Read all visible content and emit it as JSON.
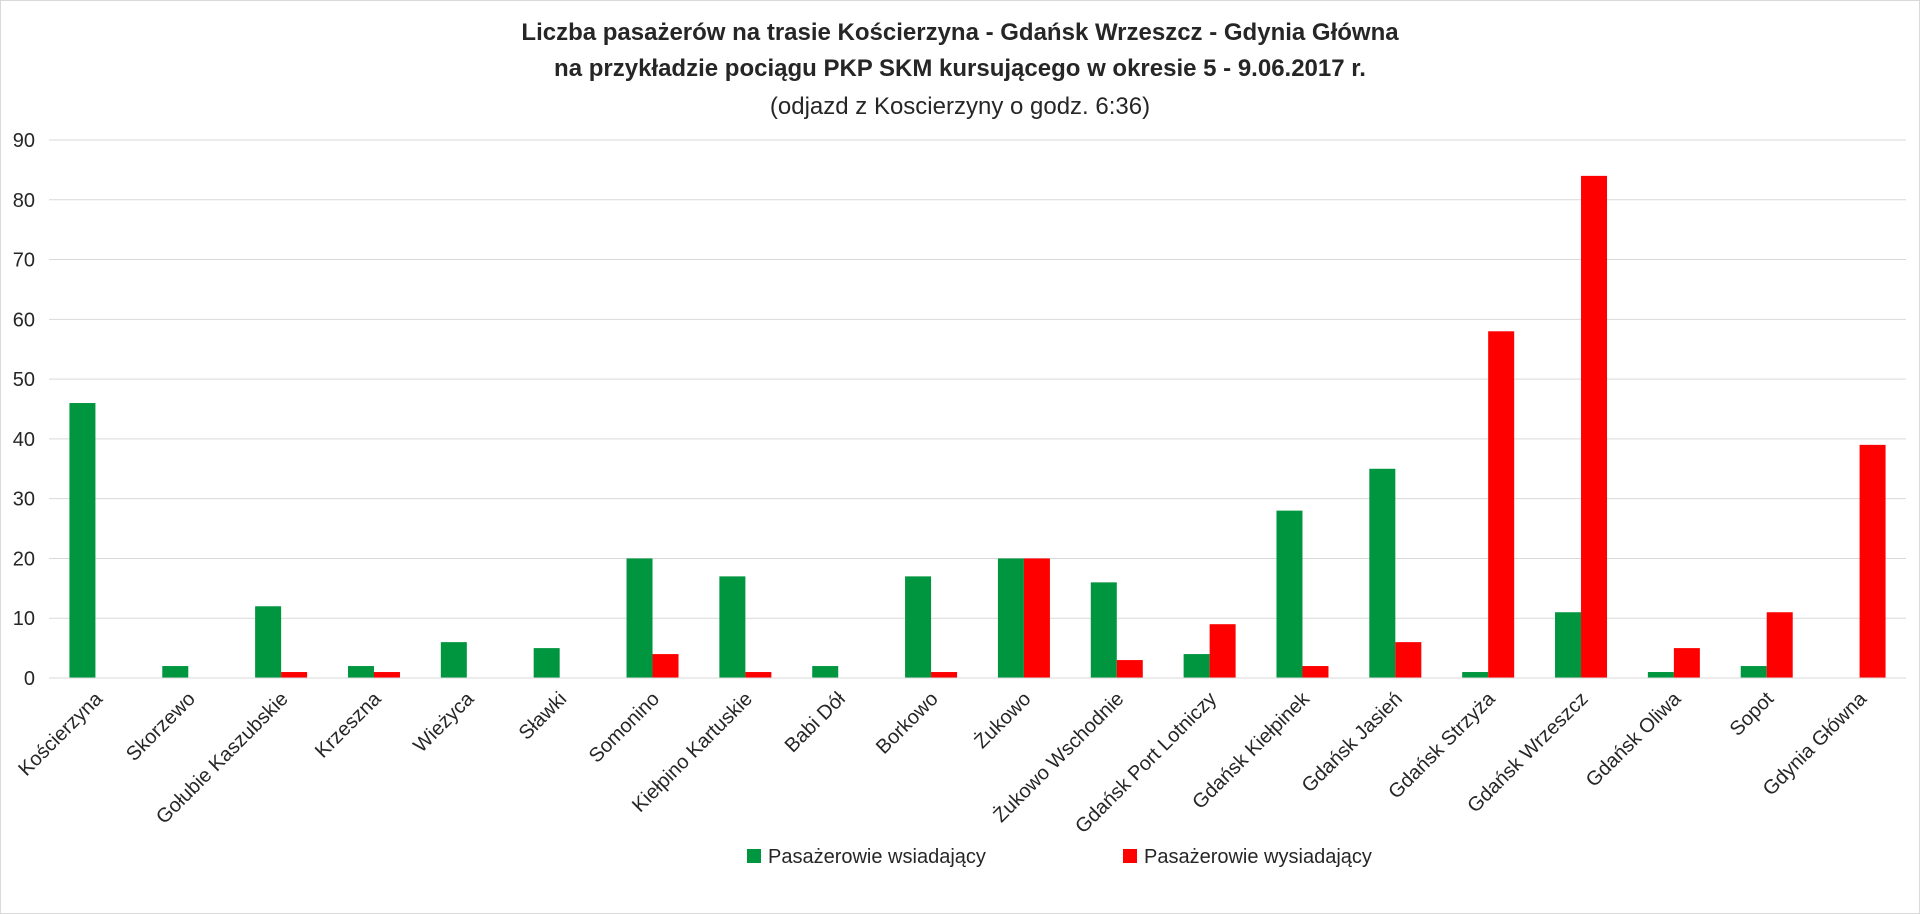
{
  "chart_data": {
    "type": "bar",
    "title": "Liczba pasażerów na trasie Kościerzyna - Gdańsk Wrzeszcz  - Gdynia Główna",
    "subtitle": "na przykładzie pociągu PKP SKM kursującego w okresie 5 - 9.06.2017 r.",
    "note": "(odjazd z Koscierzyny o godz. 6:36)",
    "xlabel": "",
    "ylabel": "",
    "ylim": [
      0,
      90
    ],
    "yticks": [
      0,
      10,
      20,
      30,
      40,
      50,
      60,
      70,
      80,
      90
    ],
    "grid": true,
    "legend_position": "bottom",
    "categories": [
      "Kościerzyna",
      "Skorzewo",
      "Gołubie Kaszubskie",
      "Krzeszna",
      "Wieżyca",
      "Sławki",
      "Somonino",
      "Kiełpino Kartuskie",
      "Babi Dół",
      "Borkowo",
      "Żukowo",
      "Żukowo Wschodnie",
      "Gdańsk Port Lotniczy",
      "Gdańsk Kiełpinek",
      "Gdańsk Jasień",
      "Gdańsk Strzyża",
      "Gdańsk Wrzeszcz",
      "Gdańsk Oliwa",
      "Sopot",
      "Gdynia Główna"
    ],
    "series": [
      {
        "name": "Pasażerowie wsiadający",
        "color": "#00953f",
        "values": [
          46,
          2,
          12,
          2,
          6,
          5,
          20,
          17,
          2,
          17,
          20,
          16,
          4,
          28,
          35,
          1,
          11,
          1,
          2,
          0
        ]
      },
      {
        "name": "Pasażerowie wysiadający",
        "color": "#ff0000",
        "values": [
          0,
          0,
          1,
          1,
          0,
          0,
          4,
          1,
          0,
          1,
          20,
          3,
          9,
          2,
          6,
          58,
          84,
          5,
          11,
          39
        ]
      }
    ]
  }
}
